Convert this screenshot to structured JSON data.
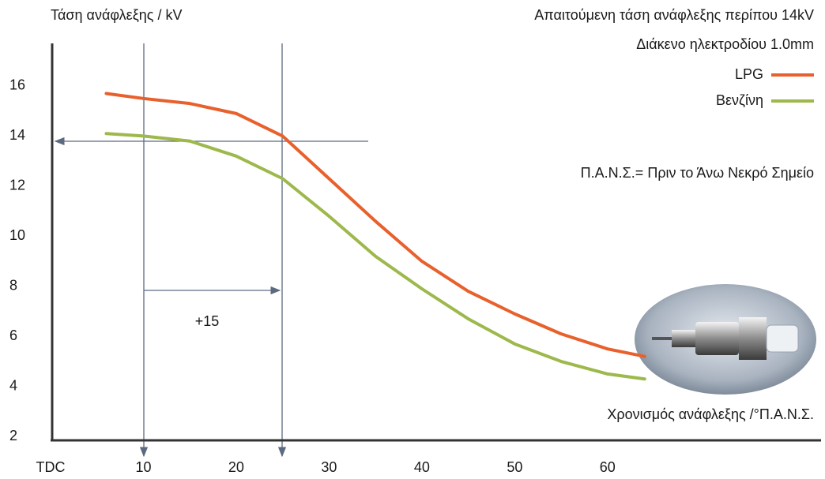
{
  "chart_data": {
    "type": "line",
    "y_label": "Τάση ανάφλεξης / kV",
    "x_label": "Χρονισμός ανάφλεξης /°Π.Α.Ν.Σ.",
    "annotations": [
      "Απαιτούμενη τάση ανάφλεξης περίπου 14kV",
      "Διάκενο ηλεκτροδίου 1.0mm",
      "Π.Α.Ν.Σ.= Πριν το Άνω Νεκρό Σημείο",
      "+15"
    ],
    "x": [
      6,
      10,
      15,
      20,
      25,
      30,
      35,
      40,
      45,
      50,
      55,
      60,
      64
    ],
    "series": [
      {
        "name": "LPG",
        "color": "#e8602c",
        "values": [
          15.7,
          15.5,
          15.3,
          14.9,
          14.0,
          12.3,
          10.6,
          9.0,
          7.8,
          6.9,
          6.1,
          5.5,
          5.2
        ]
      },
      {
        "name": "Βενζίνη",
        "color": "#9db84b",
        "values": [
          14.1,
          14.0,
          13.8,
          13.2,
          12.3,
          10.8,
          9.2,
          7.9,
          6.7,
          5.7,
          5.0,
          4.5,
          4.3
        ]
      }
    ],
    "xlim": [
      0,
      83
    ],
    "ylim": [
      1.85,
      17.7
    ],
    "xticks": [
      {
        "value": 0,
        "label": "TDC"
      },
      10,
      20,
      30,
      40,
      50,
      60
    ],
    "yticks": [
      2,
      4,
      6,
      8,
      10,
      12,
      14,
      16
    ],
    "grid": false,
    "legend": "upper right"
  }
}
